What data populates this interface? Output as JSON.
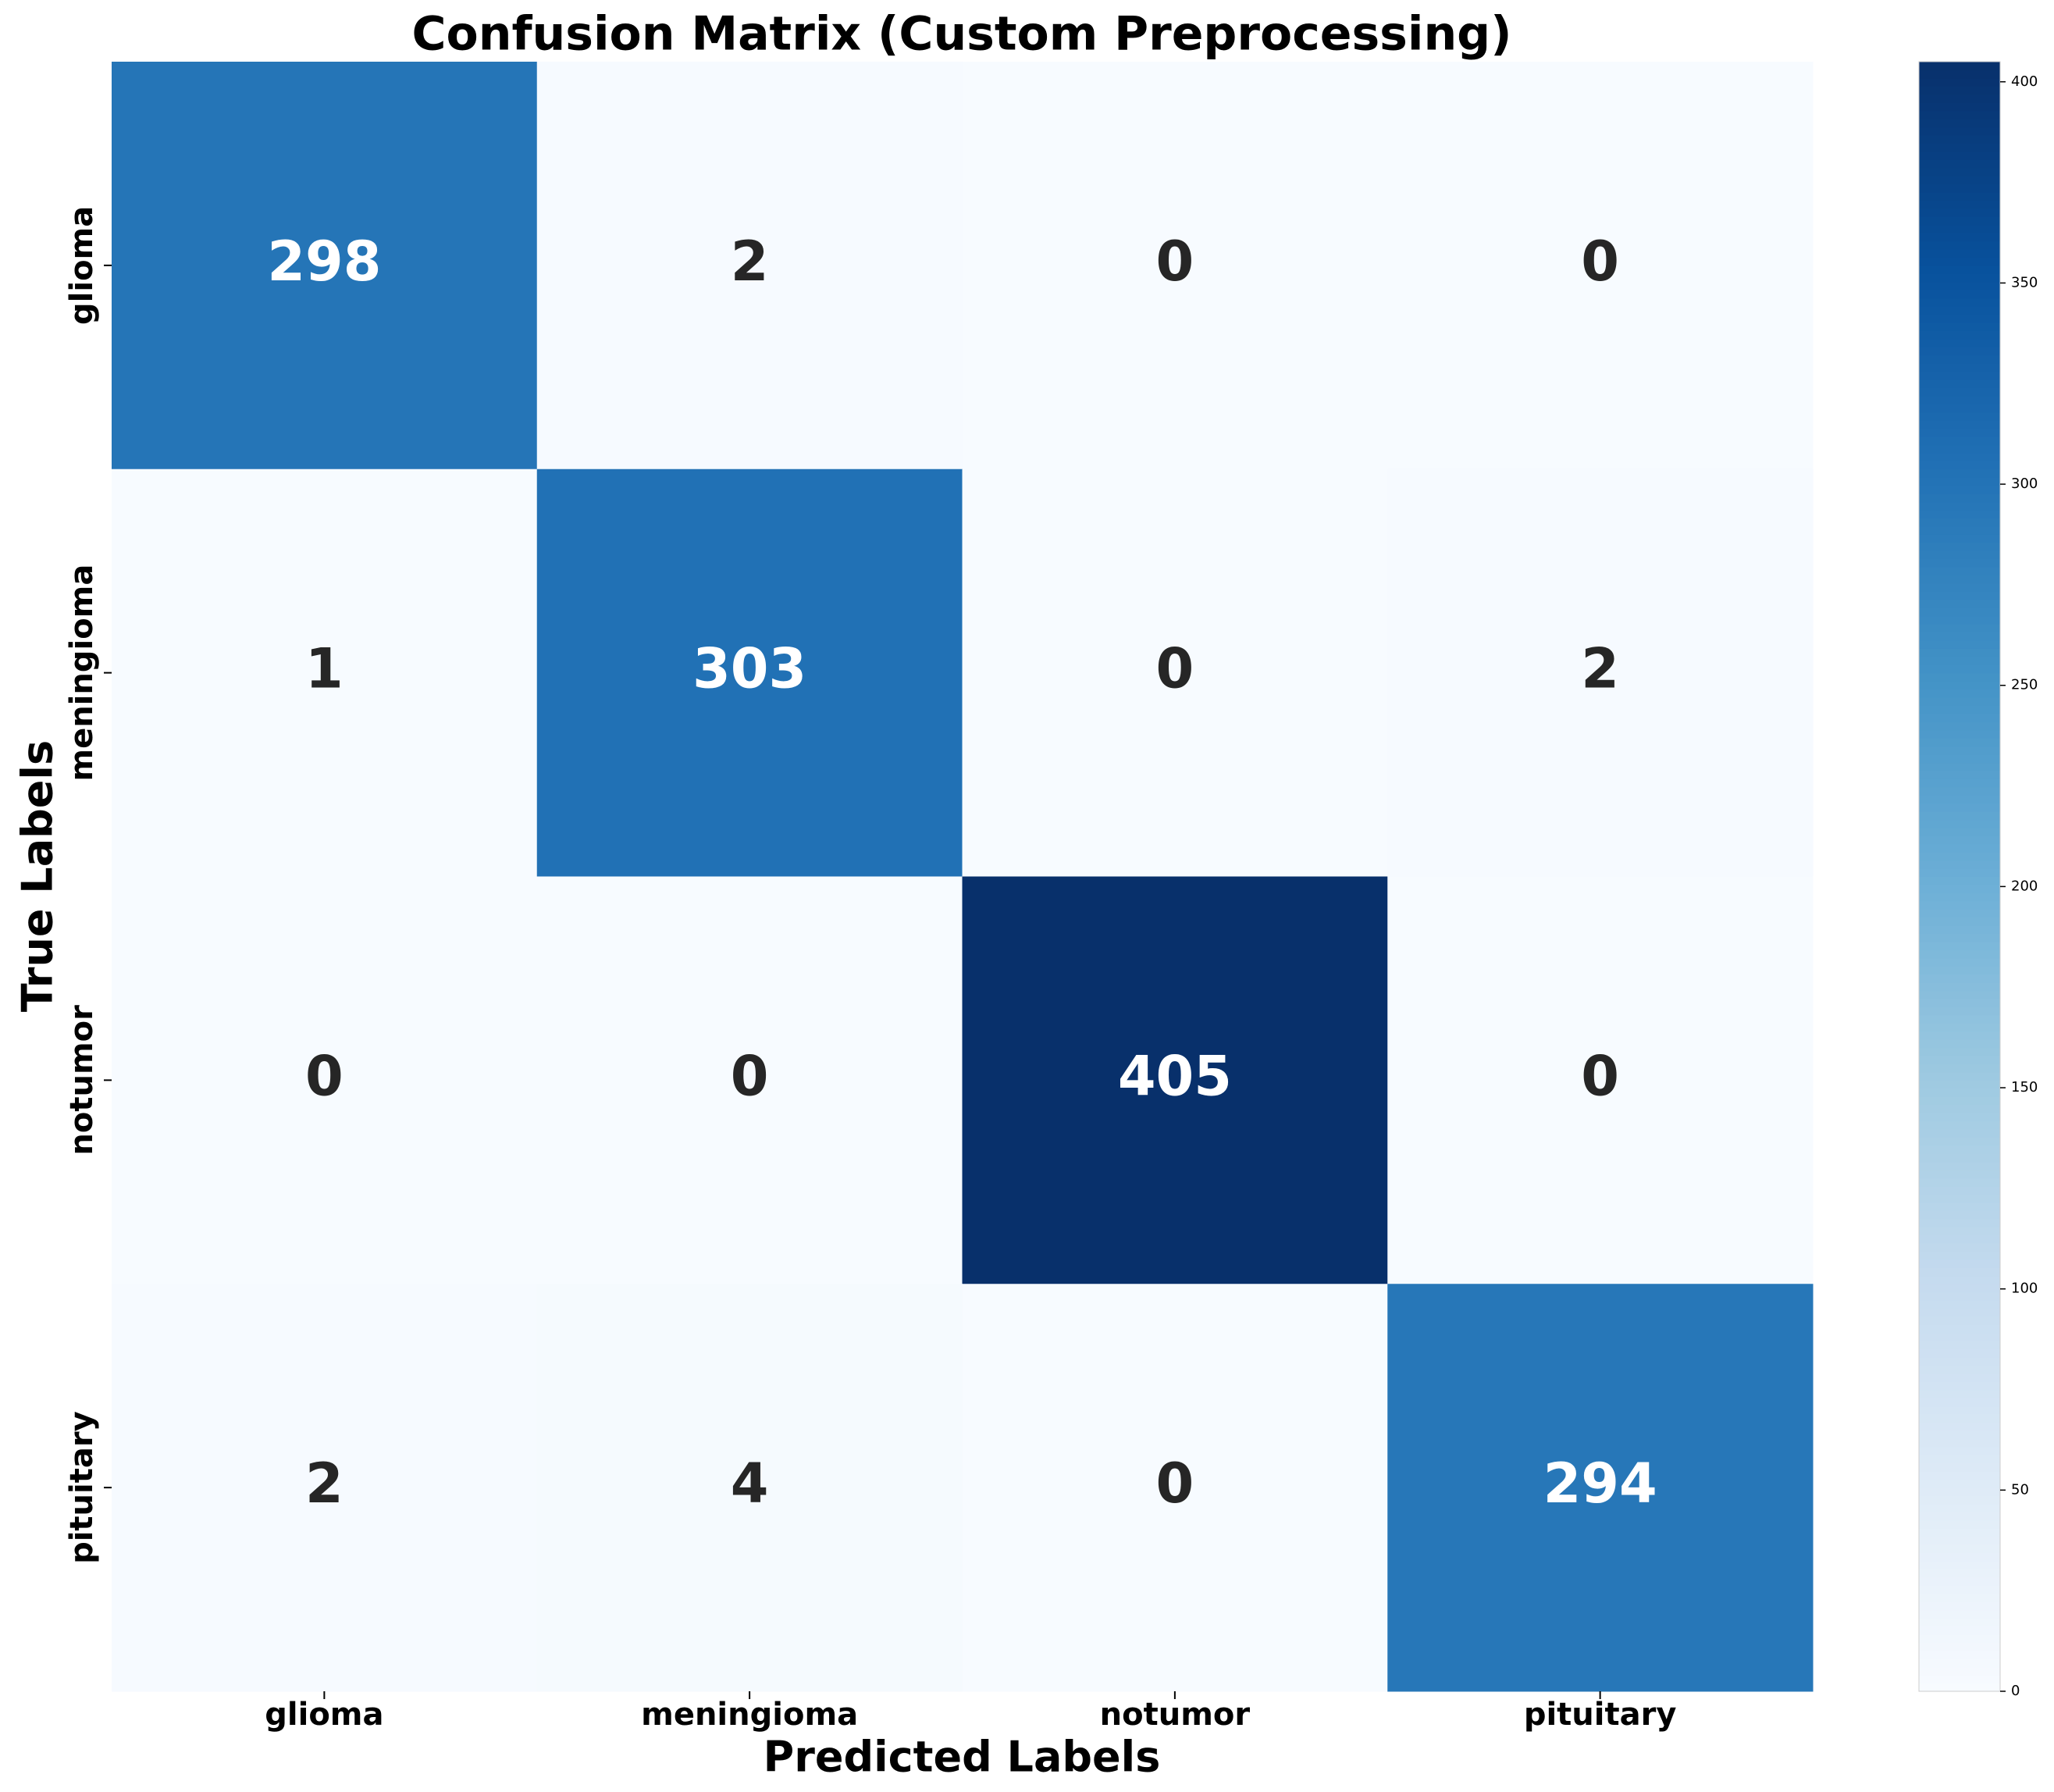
{
  "chart_data": {
    "type": "heatmap",
    "title": "Confusion Matrix (Custom Preprocessing)",
    "xlabel": "Predicted Labels",
    "ylabel": "True Labels",
    "x_categories": [
      "glioma",
      "meningioma",
      "notumor",
      "pituitary"
    ],
    "y_categories": [
      "glioma",
      "meningioma",
      "notumor",
      "pituitary"
    ],
    "values": [
      [
        298,
        2,
        0,
        0
      ],
      [
        1,
        303,
        0,
        2
      ],
      [
        0,
        0,
        405,
        0
      ],
      [
        2,
        4,
        0,
        294
      ]
    ],
    "colormap": "Blues",
    "zlim": [
      0,
      405
    ],
    "zticks": [
      0,
      50,
      100,
      150,
      200,
      250,
      300,
      350,
      400
    ]
  }
}
